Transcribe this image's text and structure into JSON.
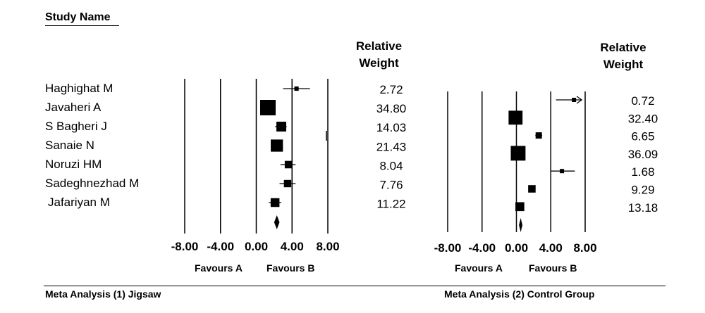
{
  "study_header": "Study Name",
  "panels_text": {
    "left": {
      "weight_header": [
        "Relative",
        "Weight"
      ],
      "caption": "Meta Analysis (1) Jigsaw",
      "favours": [
        "Favours A",
        "Favours B"
      ]
    },
    "right": {
      "weight_header": [
        "Relative",
        "Weight"
      ],
      "caption": "Meta Analysis (2) Control Group",
      "favours": [
        "Favours A",
        "Favours B"
      ]
    }
  },
  "chart_data": [
    {
      "type": "forest",
      "title": "Meta Analysis (1) Jigsaw",
      "xlim": [
        -8,
        8
      ],
      "xticks": [
        "-8.00",
        "-4.00",
        "0.00",
        "4.00",
        "8.00"
      ],
      "study_label_header": "Study Name",
      "weight_header": "Relative Weight",
      "favours": [
        "Favours A",
        "Favours B"
      ],
      "studies": [
        {
          "name": "Haghighat M",
          "effect": 4.5,
          "ci": [
            3.0,
            6.0
          ],
          "weight": "2.72"
        },
        {
          "name": "Javaheri A",
          "effect": 1.3,
          "ci": [
            0.6,
            2.0
          ],
          "weight": "34.80"
        },
        {
          "name": "S Bagheri J",
          "effect": 2.8,
          "ci": [
            2.1,
            3.4
          ],
          "weight": "14.03"
        },
        {
          "name": "Sanaie N",
          "effect": 2.3,
          "ci": [
            1.7,
            2.9
          ],
          "weight": "21.43"
        },
        {
          "name": "Noruzi HM",
          "effect": 3.6,
          "ci": [
            2.7,
            4.4
          ],
          "weight": "8.04"
        },
        {
          "name": "Sadeghnezhad M",
          "effect": 3.5,
          "ci": [
            2.6,
            4.4
          ],
          "weight": "7.76"
        },
        {
          "name": "Jafariyan M",
          "effect": 2.1,
          "ci": [
            1.4,
            2.8
          ],
          "weight": "11.22"
        }
      ],
      "summary": {
        "effect": 2.3,
        "ci": [
          2.0,
          2.6
        ]
      }
    },
    {
      "type": "forest",
      "title": "Meta Analysis (2) Control Group",
      "xlim": [
        -8,
        8
      ],
      "xticks": [
        "-8.00",
        "-4.00",
        "0.00",
        "4.00",
        "8.00"
      ],
      "weight_header": "Relative Weight",
      "favours": [
        "Favours A",
        "Favours B"
      ],
      "studies": [
        {
          "effect": 6.7,
          "ci": [
            4.6,
            7.6
          ],
          "weight": "0.72",
          "arrow": true
        },
        {
          "effect": -0.1,
          "ci": [
            -0.5,
            0.3
          ],
          "weight": "32.40"
        },
        {
          "effect": 2.6,
          "ci": [
            2.2,
            3.0
          ],
          "weight": "6.65"
        },
        {
          "effect": 0.2,
          "ci": [
            -0.3,
            0.7
          ],
          "weight": "36.09"
        },
        {
          "effect": 5.3,
          "ci": [
            4.0,
            6.8
          ],
          "weight": "1.68"
        },
        {
          "effect": 1.8,
          "ci": [
            1.4,
            2.2
          ],
          "weight": "9.29"
        },
        {
          "effect": 0.4,
          "ci": [
            0.0,
            0.8
          ],
          "weight": "13.18"
        }
      ],
      "summary": {
        "effect": 0.5,
        "ci": [
          0.3,
          0.7
        ]
      }
    }
  ]
}
